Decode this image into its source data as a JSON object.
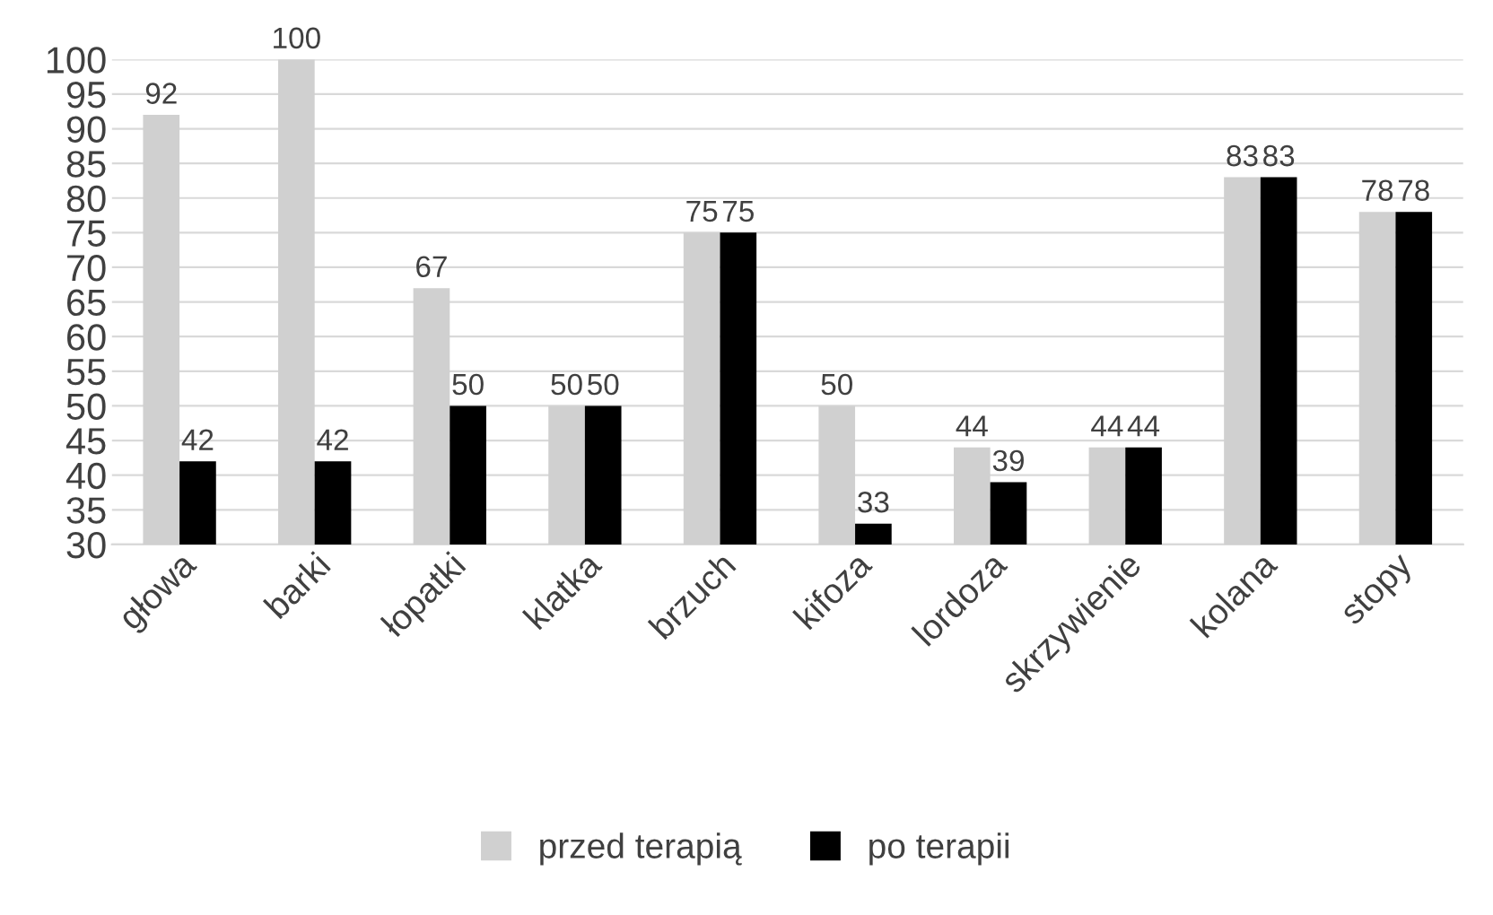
{
  "chart_data": {
    "type": "bar",
    "categories": [
      "głowa",
      "barki",
      "łopatki",
      "klatka",
      "brzuch",
      "kifoza",
      "lordoza",
      "skrzywienie",
      "kolana",
      "stopy"
    ],
    "series": [
      {
        "name": "przed terapią",
        "color": "#d0d0d0",
        "values": [
          92,
          100,
          67,
          50,
          75,
          50,
          44,
          44,
          83,
          78
        ]
      },
      {
        "name": "po terapii",
        "color": "#000000",
        "values": [
          42,
          42,
          50,
          50,
          75,
          33,
          39,
          44,
          83,
          78
        ]
      }
    ],
    "ylim": [
      30,
      100
    ],
    "yticks": [
      30,
      35,
      40,
      45,
      50,
      55,
      60,
      65,
      70,
      75,
      80,
      85,
      90,
      95,
      100
    ],
    "grid": "y",
    "legend": "bottom",
    "data_labels": true
  }
}
